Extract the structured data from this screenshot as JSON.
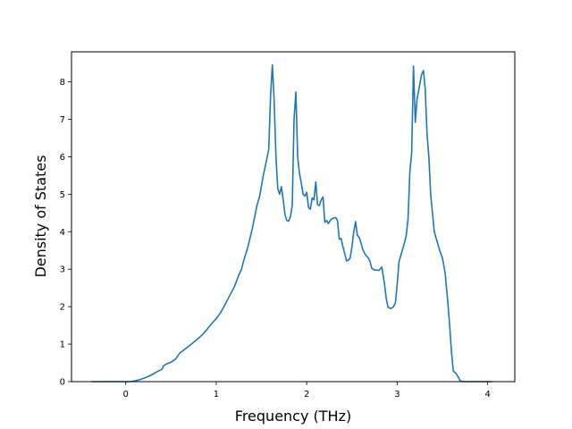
{
  "chart_data": {
    "type": "line",
    "title": "",
    "xlabel": "Frequency (THz)",
    "ylabel": "Density of States",
    "xlim": [
      -0.6,
      4.3
    ],
    "ylim": [
      0,
      8.8
    ],
    "xticks": [
      0,
      1,
      2,
      3,
      4
    ],
    "yticks": [
      0,
      1,
      2,
      3,
      4,
      5,
      6,
      7,
      8
    ],
    "grid": false,
    "legend": "none",
    "series": [
      {
        "color": "#1f77b4",
        "points": [
          [
            -0.38,
            0
          ],
          [
            0.0,
            0.0
          ],
          [
            0.05,
            0.0
          ],
          [
            0.1,
            0.02
          ],
          [
            0.15,
            0.05
          ],
          [
            0.2,
            0.09
          ],
          [
            0.25,
            0.14
          ],
          [
            0.3,
            0.2
          ],
          [
            0.35,
            0.27
          ],
          [
            0.4,
            0.33
          ],
          [
            0.42,
            0.43
          ],
          [
            0.45,
            0.47
          ],
          [
            0.5,
            0.52
          ],
          [
            0.55,
            0.6
          ],
          [
            0.6,
            0.77
          ],
          [
            0.65,
            0.86
          ],
          [
            0.7,
            0.95
          ],
          [
            0.75,
            1.05
          ],
          [
            0.8,
            1.15
          ],
          [
            0.85,
            1.26
          ],
          [
            0.9,
            1.4
          ],
          [
            0.95,
            1.55
          ],
          [
            1.0,
            1.68
          ],
          [
            1.05,
            1.85
          ],
          [
            1.1,
            2.07
          ],
          [
            1.15,
            2.3
          ],
          [
            1.2,
            2.53
          ],
          [
            1.25,
            2.85
          ],
          [
            1.28,
            3.0
          ],
          [
            1.3,
            3.2
          ],
          [
            1.35,
            3.6
          ],
          [
            1.4,
            4.1
          ],
          [
            1.45,
            4.7
          ],
          [
            1.48,
            4.95
          ],
          [
            1.52,
            5.5
          ],
          [
            1.56,
            5.95
          ],
          [
            1.58,
            6.2
          ],
          [
            1.6,
            7.6
          ],
          [
            1.62,
            8.45
          ],
          [
            1.64,
            7.5
          ],
          [
            1.66,
            6.0
          ],
          [
            1.68,
            5.15
          ],
          [
            1.7,
            5.0
          ],
          [
            1.72,
            5.2
          ],
          [
            1.74,
            4.85
          ],
          [
            1.76,
            4.45
          ],
          [
            1.78,
            4.3
          ],
          [
            1.8,
            4.28
          ],
          [
            1.82,
            4.4
          ],
          [
            1.84,
            4.7
          ],
          [
            1.86,
            7.0
          ],
          [
            1.88,
            7.73
          ],
          [
            1.9,
            6.0
          ],
          [
            1.92,
            5.55
          ],
          [
            1.94,
            5.3
          ],
          [
            1.96,
            5.0
          ],
          [
            1.98,
            4.95
          ],
          [
            2.0,
            5.05
          ],
          [
            2.02,
            4.65
          ],
          [
            2.04,
            4.6
          ],
          [
            2.06,
            4.9
          ],
          [
            2.08,
            4.85
          ],
          [
            2.1,
            5.33
          ],
          [
            2.12,
            4.72
          ],
          [
            2.14,
            4.7
          ],
          [
            2.16,
            4.85
          ],
          [
            2.18,
            4.93
          ],
          [
            2.2,
            4.25
          ],
          [
            2.22,
            4.3
          ],
          [
            2.24,
            4.22
          ],
          [
            2.26,
            4.3
          ],
          [
            2.28,
            4.35
          ],
          [
            2.32,
            4.38
          ],
          [
            2.34,
            4.3
          ],
          [
            2.36,
            3.8
          ],
          [
            2.38,
            3.82
          ],
          [
            2.4,
            3.6
          ],
          [
            2.42,
            3.42
          ],
          [
            2.44,
            3.22
          ],
          [
            2.46,
            3.24
          ],
          [
            2.48,
            3.3
          ],
          [
            2.5,
            3.6
          ],
          [
            2.52,
            4.0
          ],
          [
            2.54,
            4.27
          ],
          [
            2.56,
            3.9
          ],
          [
            2.58,
            3.85
          ],
          [
            2.6,
            3.7
          ],
          [
            2.62,
            3.52
          ],
          [
            2.65,
            3.38
          ],
          [
            2.68,
            3.3
          ],
          [
            2.7,
            3.2
          ],
          [
            2.72,
            3.02
          ],
          [
            2.75,
            2.98
          ],
          [
            2.8,
            2.97
          ],
          [
            2.83,
            3.06
          ],
          [
            2.86,
            2.6
          ],
          [
            2.88,
            2.2
          ],
          [
            2.9,
            1.98
          ],
          [
            2.93,
            1.95
          ],
          [
            2.96,
            2.0
          ],
          [
            2.98,
            2.1
          ],
          [
            3.0,
            2.6
          ],
          [
            3.02,
            3.2
          ],
          [
            3.05,
            3.45
          ],
          [
            3.08,
            3.7
          ],
          [
            3.1,
            3.9
          ],
          [
            3.12,
            4.35
          ],
          [
            3.14,
            5.6
          ],
          [
            3.16,
            6.1
          ],
          [
            3.18,
            8.42
          ],
          [
            3.2,
            6.92
          ],
          [
            3.22,
            7.55
          ],
          [
            3.24,
            7.8
          ],
          [
            3.27,
            8.2
          ],
          [
            3.29,
            8.3
          ],
          [
            3.31,
            7.8
          ],
          [
            3.33,
            6.6
          ],
          [
            3.35,
            6.0
          ],
          [
            3.37,
            5.0
          ],
          [
            3.39,
            4.5
          ],
          [
            3.41,
            4.0
          ],
          [
            3.44,
            3.75
          ],
          [
            3.47,
            3.5
          ],
          [
            3.5,
            3.3
          ],
          [
            3.53,
            2.9
          ],
          [
            3.56,
            2.1
          ],
          [
            3.58,
            1.5
          ],
          [
            3.6,
            0.8
          ],
          [
            3.62,
            0.28
          ],
          [
            3.65,
            0.22
          ],
          [
            3.68,
            0.1
          ],
          [
            3.7,
            0.01
          ],
          [
            3.75,
            0.0
          ],
          [
            4.05,
            0
          ]
        ]
      }
    ]
  }
}
